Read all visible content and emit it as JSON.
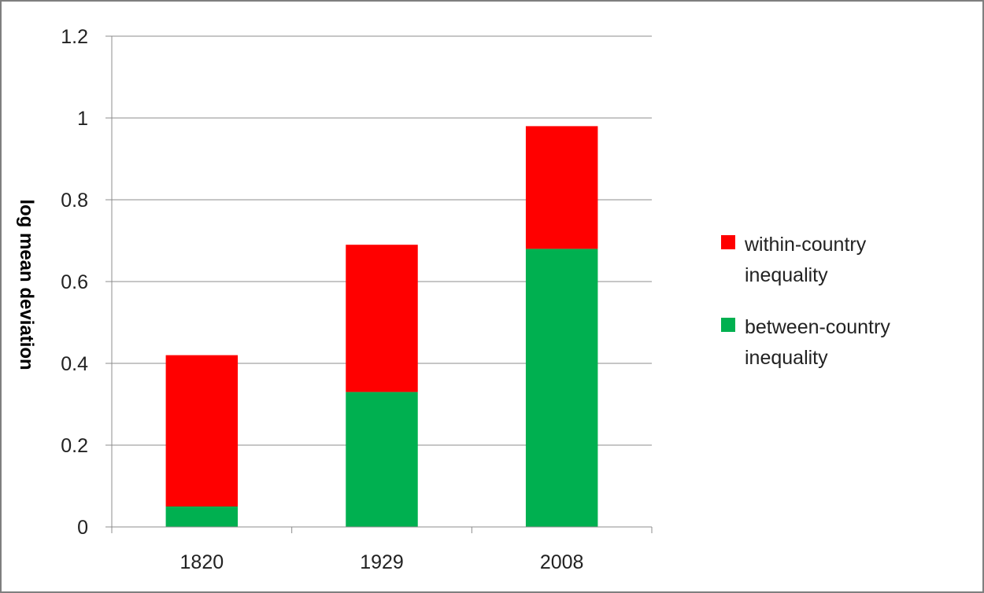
{
  "chart_data": {
    "type": "bar",
    "stacked": true,
    "title": "",
    "xlabel": "",
    "ylabel": "log mean deviation",
    "categories": [
      "1820",
      "1929",
      "2008"
    ],
    "series": [
      {
        "name": "between-country inequality",
        "color": "#00b050",
        "values": [
          0.05,
          0.33,
          0.68
        ]
      },
      {
        "name": "within-country inequality",
        "color": "#ff0000",
        "values": [
          0.37,
          0.36,
          0.3
        ]
      }
    ],
    "ylim": [
      0,
      1.2
    ],
    "yticks": [
      "0",
      "0.2",
      "0.4",
      "0.6",
      "0.8",
      "1",
      "1.2"
    ],
    "grid": true,
    "legend": {
      "position": "right",
      "entries": [
        {
          "lines": [
            "within-country",
            "inequality"
          ],
          "color": "#ff0000"
        },
        {
          "lines": [
            "between-country",
            "inequality"
          ],
          "color": "#00b050"
        }
      ]
    }
  }
}
